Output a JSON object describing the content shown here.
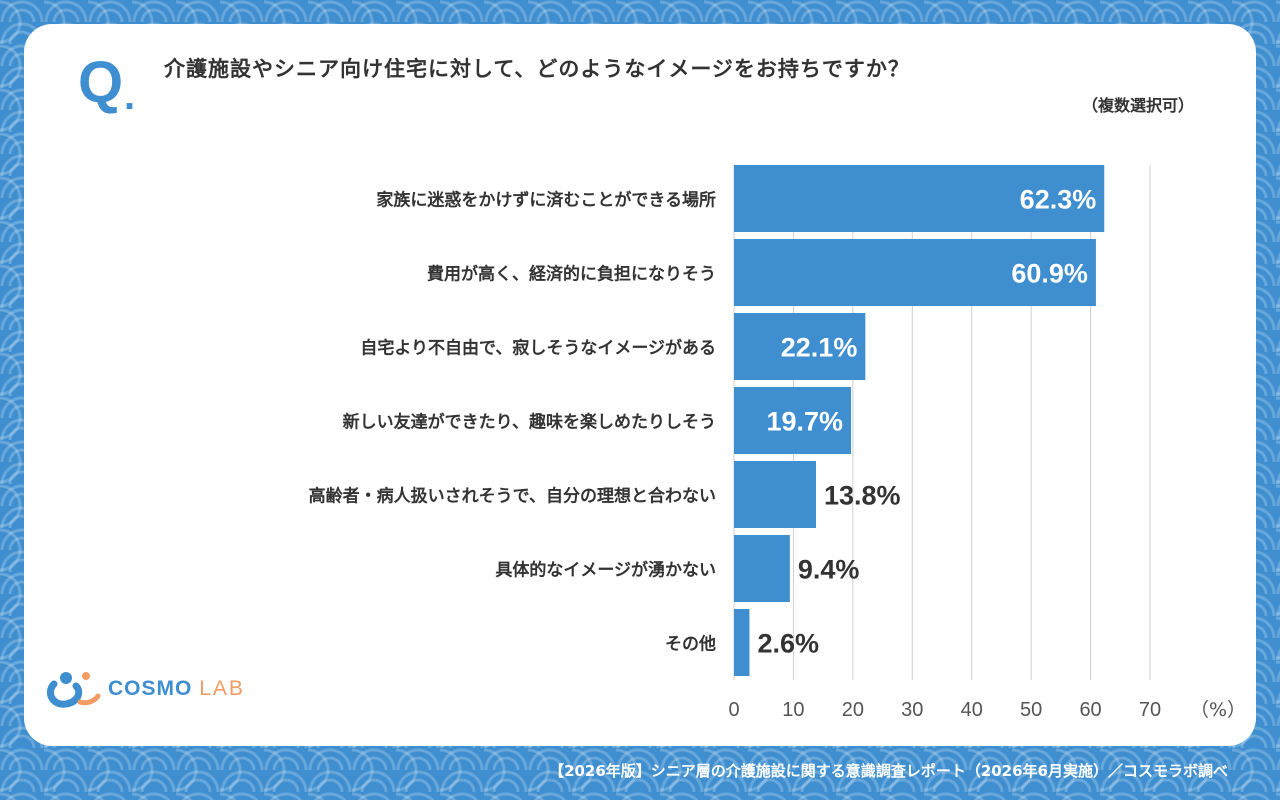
{
  "header": {
    "q_label": "Q",
    "q_dot": ".",
    "question": "介護施設やシニア向け住宅に対して、どのようなイメージをお持ちですか？",
    "note": "（複数選択可）"
  },
  "chart_data": {
    "type": "bar",
    "orientation": "horizontal",
    "categories": [
      "家族に迷惑をかけずに済むことができる場所",
      "費用が高く、経済的に負担になりそう",
      "自宅より不自由で、寂しそうなイメージがある",
      "新しい友達ができたり、趣味を楽しめたりしそう",
      "高齢者・病人扱いされそうで、自分の理想と合わない",
      "具体的なイメージが湧かない",
      "その他"
    ],
    "values": [
      62.3,
      60.9,
      22.1,
      19.7,
      13.8,
      9.4,
      2.6
    ],
    "value_labels": [
      "62.3%",
      "60.9%",
      "22.1%",
      "19.7%",
      "13.8%",
      "9.4%",
      "2.6%"
    ],
    "xlim": [
      0,
      70
    ],
    "xticks": [
      "0",
      "10",
      "20",
      "30",
      "40",
      "50",
      "60",
      "70"
    ],
    "xunit": "（%）",
    "grid": true,
    "bar_color": "#3e8ed0"
  },
  "logo": {
    "main": "COSMO",
    "sub": "LAB"
  },
  "footer": "【2026年版】シニア層の介護施設に関する意識調査レポート（2026年6月実施）／コスモラボ調べ",
  "colors": {
    "accent": "#3e8ed0",
    "logo_orange": "#f29b62",
    "text": "#333333"
  }
}
